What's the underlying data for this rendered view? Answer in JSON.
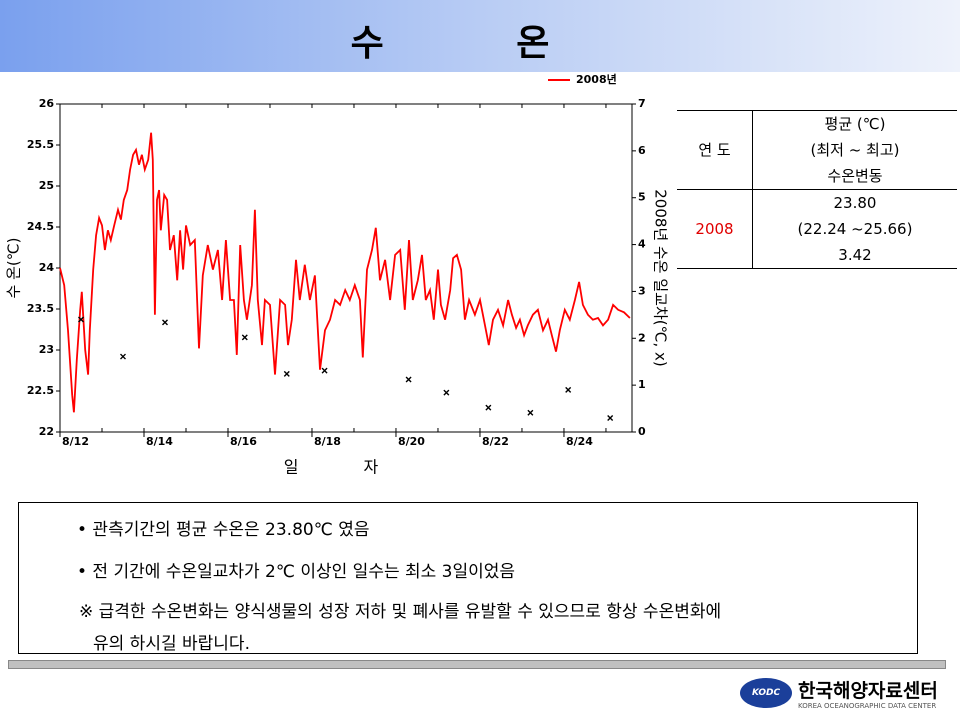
{
  "chart_data": {
    "type": "line",
    "title": "수 온",
    "xlabel": "일 자",
    "ylabel": "수 온(℃)",
    "y2label": "2008년 수온 일교차(℃, x)",
    "xlim": [
      12,
      25.62
    ],
    "xticks": [
      {
        "value": 12,
        "label": "8/12"
      },
      {
        "value": 14,
        "label": "8/14"
      },
      {
        "value": 16,
        "label": "8/16"
      },
      {
        "value": 18,
        "label": "8/18"
      },
      {
        "value": 20,
        "label": "8/20"
      },
      {
        "value": 22,
        "label": "8/22"
      },
      {
        "value": 24,
        "label": "8/24"
      }
    ],
    "ylim": [
      22,
      26
    ],
    "yticks": [
      22,
      22.5,
      23,
      23.5,
      24,
      24.5,
      25,
      25.5,
      26
    ],
    "y2lim": [
      0,
      7
    ],
    "y2ticks": [
      0,
      1,
      2,
      3,
      4,
      5,
      6,
      7
    ],
    "legend": "top-right",
    "series": [
      {
        "name": "2008년",
        "color": "#ff0000",
        "x": [
          12.0,
          12.1,
          12.19,
          12.29,
          12.33,
          12.4,
          12.48,
          12.52,
          12.6,
          12.67,
          12.71,
          12.79,
          12.86,
          12.93,
          13.0,
          13.07,
          13.14,
          13.21,
          13.29,
          13.38,
          13.45,
          13.52,
          13.6,
          13.67,
          13.74,
          13.81,
          13.88,
          13.95,
          14.02,
          14.1,
          14.17,
          14.21,
          14.26,
          14.31,
          14.36,
          14.4,
          14.48,
          14.55,
          14.62,
          14.71,
          14.79,
          14.86,
          14.93,
          15.0,
          15.1,
          15.21,
          15.31,
          15.4,
          15.52,
          15.64,
          15.76,
          15.86,
          15.95,
          16.05,
          16.14,
          16.21,
          16.29,
          16.38,
          16.45,
          16.57,
          16.64,
          16.71,
          16.81,
          16.88,
          17.0,
          17.12,
          17.24,
          17.36,
          17.43,
          17.52,
          17.62,
          17.71,
          17.83,
          17.95,
          18.07,
          18.19,
          18.31,
          18.43,
          18.55,
          18.67,
          18.79,
          18.9,
          19.02,
          19.14,
          19.21,
          19.31,
          19.43,
          19.52,
          19.62,
          19.74,
          19.86,
          19.98,
          20.1,
          20.21,
          20.31,
          20.4,
          20.52,
          20.62,
          20.71,
          20.81,
          20.9,
          21.0,
          21.07,
          21.17,
          21.29,
          21.36,
          21.45,
          21.55,
          21.64,
          21.74,
          21.88,
          22.0,
          22.12,
          22.21,
          22.31,
          22.43,
          22.55,
          22.67,
          22.76,
          22.86,
          22.95,
          23.05,
          23.14,
          23.26,
          23.38,
          23.5,
          23.62,
          23.71,
          23.81,
          23.9,
          24.02,
          24.14,
          24.26,
          24.36,
          24.45,
          24.57,
          24.69,
          24.81,
          24.93,
          25.05,
          25.17,
          25.29,
          25.43,
          25.57
        ],
        "values": [
          24.0,
          23.79,
          23.24,
          22.45,
          22.24,
          22.88,
          23.49,
          23.71,
          23.0,
          22.7,
          23.24,
          23.98,
          24.4,
          24.61,
          24.52,
          24.22,
          24.46,
          24.34,
          24.52,
          24.71,
          24.59,
          24.83,
          24.95,
          25.2,
          25.38,
          25.44,
          25.26,
          25.38,
          25.2,
          25.32,
          25.65,
          25.32,
          23.43,
          24.83,
          24.95,
          24.46,
          24.89,
          24.83,
          24.22,
          24.4,
          23.85,
          24.46,
          23.98,
          24.52,
          24.28,
          24.34,
          23.02,
          23.91,
          24.28,
          23.98,
          24.22,
          23.61,
          24.34,
          23.61,
          23.61,
          22.94,
          24.28,
          23.61,
          23.37,
          23.79,
          24.71,
          23.61,
          23.06,
          23.61,
          23.55,
          22.7,
          23.61,
          23.55,
          23.06,
          23.37,
          24.1,
          23.61,
          24.04,
          23.61,
          23.91,
          22.76,
          23.24,
          23.37,
          23.61,
          23.55,
          23.73,
          23.61,
          23.79,
          23.61,
          22.91,
          23.98,
          24.22,
          24.49,
          23.85,
          24.1,
          23.61,
          24.16,
          24.22,
          23.49,
          24.34,
          23.61,
          23.85,
          24.16,
          23.61,
          23.73,
          23.37,
          23.98,
          23.55,
          23.37,
          23.73,
          24.12,
          24.16,
          23.98,
          23.37,
          23.61,
          23.43,
          23.61,
          23.3,
          23.06,
          23.37,
          23.49,
          23.3,
          23.61,
          23.43,
          23.27,
          23.37,
          23.18,
          23.3,
          23.43,
          23.49,
          23.24,
          23.37,
          23.18,
          22.98,
          23.24,
          23.49,
          23.37,
          23.61,
          23.83,
          23.55,
          23.43,
          23.37,
          23.39,
          23.3,
          23.37,
          23.55,
          23.49,
          23.46,
          23.39
        ]
      },
      {
        "type": "scatter",
        "axis": "y2",
        "color": "#000000",
        "marker": "x",
        "x": [
          12.5,
          13.5,
          14.5,
          16.4,
          17.4,
          18.3,
          20.3,
          21.2,
          22.2,
          23.2,
          24.1,
          25.1
        ],
        "values": [
          2.4,
          1.61,
          2.34,
          2.02,
          1.24,
          1.31,
          1.12,
          0.84,
          0.52,
          0.41,
          0.9,
          0.3
        ]
      }
    ]
  },
  "table": {
    "header": [
      "연 도",
      "평균 (℃)",
      "(최저 ~ 최고)",
      "수온변동"
    ],
    "rows": [
      [
        "2008",
        "23.80",
        "(22.24 ~25.66)",
        "3.42"
      ]
    ]
  },
  "notes": [
    "• 관측기간의 평균 수온은 23.80℃ 였음",
    "• 전 기간에 수온일교차가 2℃ 이상인 일수는 최소 3일이었음",
    "※ 급격한 수온변화는 양식생물의 성장 저하 및 폐사를 유발할 수 있으므로 항상 수온변화에",
    "유의 하시길 바랍니다."
  ],
  "logo": {
    "mark": "KODC",
    "name": "한국해양자료센터",
    "subtitle": "KOREA OCEANOGRAPHIC DATA CENTER"
  }
}
